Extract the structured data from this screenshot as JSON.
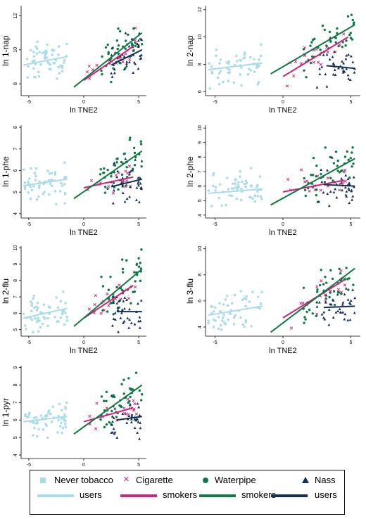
{
  "colors": {
    "never": "#a8dce8",
    "cigarette": "#d0237a",
    "waterpipe": "#0f7a43",
    "nass": "#142e54"
  },
  "legend": {
    "items": [
      {
        "key": "never",
        "marker": "square",
        "line1": "Never tobacco",
        "line2": "users"
      },
      {
        "key": "cigarette",
        "marker": "x",
        "line1": "Cigarette",
        "line2": "smokers"
      },
      {
        "key": "waterpipe",
        "marker": "circle",
        "line1": "Waterpipe",
        "line2": "smokers"
      },
      {
        "key": "nass",
        "marker": "triangle",
        "line1": "Nass",
        "line2": "users"
      }
    ]
  },
  "chart_data": [
    {
      "type": "scatter",
      "title": "",
      "xlabel": "ln TNE2",
      "ylabel": "ln 1-nap",
      "xlim": [
        -5.7,
        5.7
      ],
      "ylim": [
        7.3,
        12.6
      ],
      "xticks": [
        -5,
        0,
        5
      ],
      "yticks": [
        8,
        10,
        12
      ],
      "series": [
        {
          "key": "never",
          "fit": [
            [
              -5.5,
              9.1
            ],
            [
              -1.5,
              9.6
            ]
          ]
        },
        {
          "key": "cigarette",
          "fit": [
            [
              0.0,
              8.2
            ],
            [
              4.5,
              10.2
            ]
          ]
        },
        {
          "key": "waterpipe",
          "fit": [
            [
              -0.9,
              7.8
            ],
            [
              5.3,
              11.0
            ]
          ]
        },
        {
          "key": "nass",
          "fit": [
            [
              2.5,
              9.1
            ],
            [
              5.3,
              10.0
            ]
          ]
        }
      ]
    },
    {
      "type": "scatter",
      "title": "",
      "xlabel": "ln TNE2",
      "ylabel": "ln 2-nap",
      "xlim": [
        -5.7,
        5.7
      ],
      "ylim": [
        5.7,
        12.3
      ],
      "xticks": [
        -5,
        0,
        5
      ],
      "yticks": [
        6,
        8,
        10,
        12
      ],
      "series": [
        {
          "key": "never",
          "fit": [
            [
              -5.5,
              7.6
            ],
            [
              -1.5,
              8.1
            ]
          ]
        },
        {
          "key": "cigarette",
          "fit": [
            [
              0.0,
              7.1
            ],
            [
              4.8,
              10.0
            ]
          ]
        },
        {
          "key": "waterpipe",
          "fit": [
            [
              -0.9,
              7.3
            ],
            [
              5.3,
              10.9
            ]
          ]
        },
        {
          "key": "nass",
          "fit": [
            [
              3.2,
              7.9
            ],
            [
              5.3,
              7.7
            ]
          ]
        }
      ]
    },
    {
      "type": "scatter",
      "title": "",
      "xlabel": "ln TNE2",
      "ylabel": "ln 1-phe",
      "xlim": [
        -5.7,
        5.7
      ],
      "ylim": [
        3.8,
        8.1
      ],
      "xticks": [
        -5,
        0,
        5
      ],
      "yticks": [
        4,
        5,
        6,
        7,
        8
      ],
      "series": [
        {
          "key": "never",
          "fit": [
            [
              -5.5,
              5.3
            ],
            [
              -1.5,
              5.6
            ]
          ]
        },
        {
          "key": "cigarette",
          "fit": [
            [
              0.0,
              5.2
            ],
            [
              4.5,
              5.7
            ]
          ]
        },
        {
          "key": "waterpipe",
          "fit": [
            [
              -0.9,
              4.7
            ],
            [
              5.3,
              6.9
            ]
          ]
        },
        {
          "key": "nass",
          "fit": [
            [
              2.5,
              5.25
            ],
            [
              5.3,
              5.6
            ]
          ]
        }
      ]
    },
    {
      "type": "scatter",
      "title": "",
      "xlabel": "ln TNE2",
      "ylabel": "ln 2-phe",
      "xlim": [
        -5.7,
        5.7
      ],
      "ylim": [
        3.8,
        10.2
      ],
      "xticks": [
        -5,
        0,
        5
      ],
      "yticks": [
        4,
        5,
        6,
        7,
        8,
        9,
        10
      ],
      "series": [
        {
          "key": "never",
          "fit": [
            [
              -5.5,
              5.5
            ],
            [
              -1.5,
              5.8
            ]
          ]
        },
        {
          "key": "cigarette",
          "fit": [
            [
              0.0,
              5.6
            ],
            [
              4.5,
              6.4
            ]
          ]
        },
        {
          "key": "waterpipe",
          "fit": [
            [
              -0.9,
              4.7
            ],
            [
              5.3,
              7.9
            ]
          ]
        },
        {
          "key": "nass",
          "fit": [
            [
              3.0,
              6.1
            ],
            [
              5.3,
              6.0
            ]
          ]
        }
      ]
    },
    {
      "type": "scatter",
      "title": "",
      "xlabel": "ln TNE2",
      "ylabel": "ln 2-flu",
      "xlim": [
        -5.7,
        5.7
      ],
      "ylim": [
        4.6,
        10.1
      ],
      "xticks": [
        -5,
        0,
        5
      ],
      "yticks": [
        5,
        6,
        7,
        8,
        9,
        10
      ],
      "series": [
        {
          "key": "never",
          "fit": [
            [
              -5.5,
              5.7
            ],
            [
              -1.5,
              6.3
            ]
          ]
        },
        {
          "key": "cigarette",
          "fit": [
            [
              0.0,
              5.7
            ],
            [
              4.5,
              7.7
            ]
          ]
        },
        {
          "key": "waterpipe",
          "fit": [
            [
              -0.9,
              5.2
            ],
            [
              5.3,
              8.7
            ]
          ]
        },
        {
          "key": "nass",
          "fit": [
            [
              3.0,
              6.1
            ],
            [
              5.3,
              6.1
            ]
          ]
        }
      ]
    },
    {
      "type": "scatter",
      "title": "",
      "xlabel": "ln TNE2",
      "ylabel": "ln 3-flu",
      "xlim": [
        -5.7,
        5.7
      ],
      "ylim": [
        3.3,
        10.2
      ],
      "xticks": [
        -5,
        0,
        5
      ],
      "yticks": [
        4,
        6,
        8,
        10
      ],
      "series": [
        {
          "key": "never",
          "fit": [
            [
              -5.5,
              4.9
            ],
            [
              -1.5,
              5.6
            ]
          ]
        },
        {
          "key": "cigarette",
          "fit": [
            [
              0.0,
              4.7
            ],
            [
              4.5,
              7.6
            ]
          ]
        },
        {
          "key": "waterpipe",
          "fit": [
            [
              -0.9,
              3.6
            ],
            [
              5.3,
              8.5
            ]
          ]
        },
        {
          "key": "nass",
          "fit": [
            [
              3.0,
              5.5
            ],
            [
              5.3,
              5.6
            ]
          ]
        }
      ]
    },
    {
      "type": "scatter",
      "title": "",
      "xlabel": "ln TNE2",
      "ylabel": "ln 1-pyr",
      "xlim": [
        -5.7,
        5.7
      ],
      "ylim": [
        3.8,
        9.1
      ],
      "xticks": [
        -5,
        0,
        5
      ],
      "yticks": [
        4,
        5,
        6,
        7,
        8,
        9
      ],
      "series": [
        {
          "key": "never",
          "fit": [
            [
              -5.5,
              5.9
            ],
            [
              -1.5,
              6.2
            ]
          ]
        },
        {
          "key": "cigarette",
          "fit": [
            [
              0.0,
              5.9
            ],
            [
              4.5,
              6.7
            ]
          ]
        },
        {
          "key": "waterpipe",
          "fit": [
            [
              -0.9,
              5.2
            ],
            [
              5.3,
              8.0
            ]
          ]
        },
        {
          "key": "nass",
          "fit": [
            [
              3.0,
              6.0
            ],
            [
              5.3,
              6.2
            ]
          ]
        }
      ]
    }
  ]
}
